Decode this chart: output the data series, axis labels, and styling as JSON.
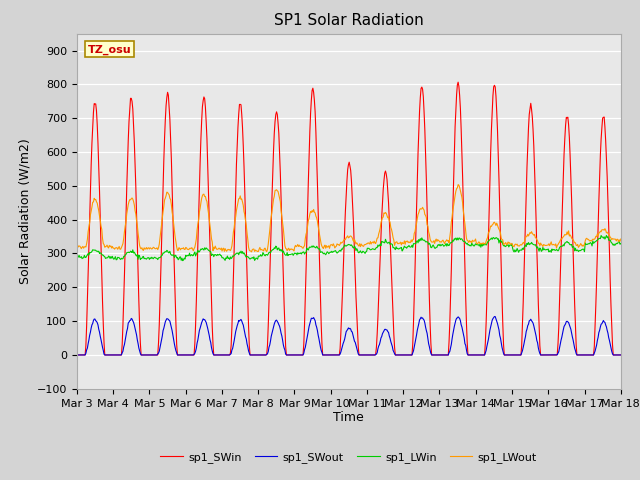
{
  "title": "SP1 Solar Radiation",
  "xlabel": "Time",
  "ylabel": "Solar Radiation (W/m2)",
  "ylim": [
    -100,
    950
  ],
  "xlim_days": [
    0,
    15
  ],
  "fig_facecolor": "#d4d4d4",
  "axes_facecolor": "#e8e8e8",
  "grid_color": "#ffffff",
  "colors": {
    "SWin": "#ff0000",
    "SWout": "#0000dd",
    "LWin": "#00cc00",
    "LWout": "#ff9900"
  },
  "legend_labels": [
    "sp1_SWin",
    "sp1_SWout",
    "sp1_LWin",
    "sp1_LWout"
  ],
  "tz_label": "TZ_osu",
  "tick_dates": [
    "Mar 3",
    "Mar 4",
    "Mar 5",
    "Mar 6",
    "Mar 7",
    "Mar 8",
    "Mar 9",
    "Mar 10",
    "Mar 11",
    "Mar 12",
    "Mar 13",
    "Mar 14",
    "Mar 15",
    "Mar 16",
    "Mar 17",
    "Mar 18"
  ],
  "tick_positions": [
    0,
    1,
    2,
    3,
    4,
    5,
    6,
    7,
    8,
    9,
    10,
    11,
    12,
    13,
    14,
    15
  ],
  "yticks": [
    -100,
    0,
    100,
    200,
    300,
    400,
    500,
    600,
    700,
    800,
    900
  ]
}
